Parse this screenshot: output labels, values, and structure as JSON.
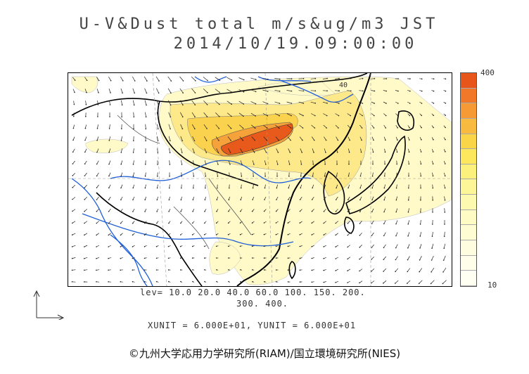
{
  "title": {
    "line1": "U-V&Dust total m/s&ug/m3 JST",
    "line2": "2014/10/19.09:00:00"
  },
  "map": {
    "contour_label": "40",
    "land_color": "#ffffff",
    "coast_color": "#000000",
    "river_color": "#1f5fd8",
    "vector_color": "#222222"
  },
  "colorbar": {
    "max_label": "400",
    "min_label": "10",
    "colors": [
      "#e8551b",
      "#f07828",
      "#f59a35",
      "#f9bb3f",
      "#fbd548",
      "#fce75d",
      "#fdf17d",
      "#fdf698",
      "#fef9b0",
      "#fefbc4",
      "#fefcd2",
      "#fffde0",
      "#fffeea",
      "#fffff2"
    ]
  },
  "levels": {
    "line1": "lev= 10.0 20.0 40.0 60.0 100. 150. 200.",
    "line2": "300. 400."
  },
  "units": {
    "text": "XUNIT = 6.000E+01, YUNIT = 6.000E+01"
  },
  "copyright": "©九州大学応用力学研究所(RIAM)/国立環境研究所(NIES)"
}
